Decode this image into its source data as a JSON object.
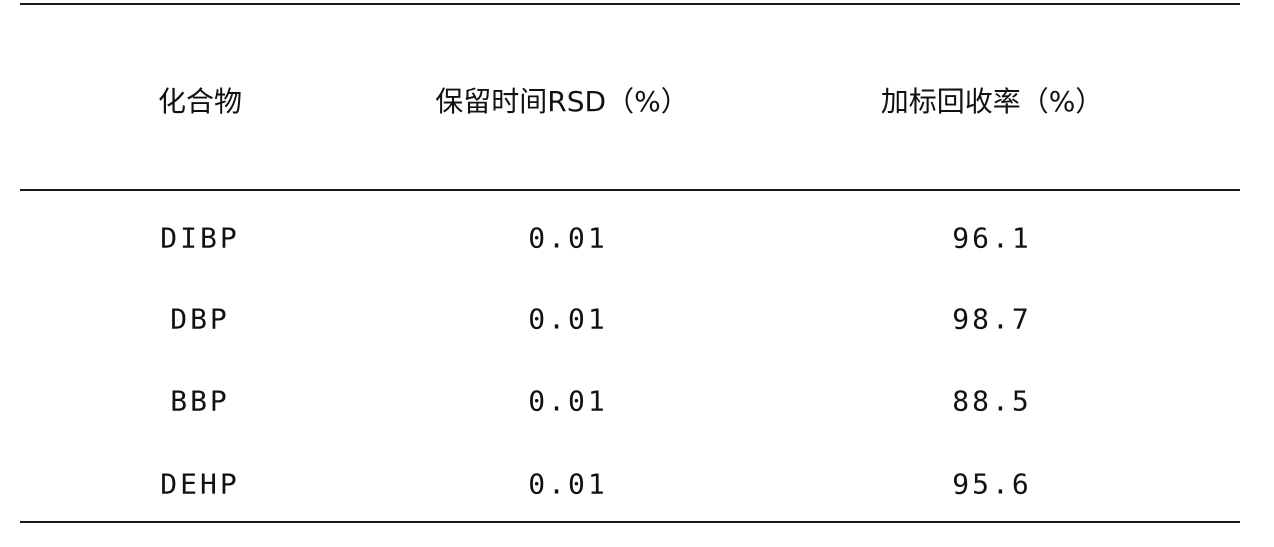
{
  "table": {
    "headers": [
      "化合物",
      "保留时间RSD（%）",
      "加标回收率（%）"
    ],
    "rows": [
      [
        "DIBP",
        "0.01",
        "96.1"
      ],
      [
        "DBP",
        "0.01",
        "98.7"
      ],
      [
        "BBP",
        "0.01",
        "88.5"
      ],
      [
        "DEHP",
        "0.01",
        "95.6"
      ]
    ]
  }
}
